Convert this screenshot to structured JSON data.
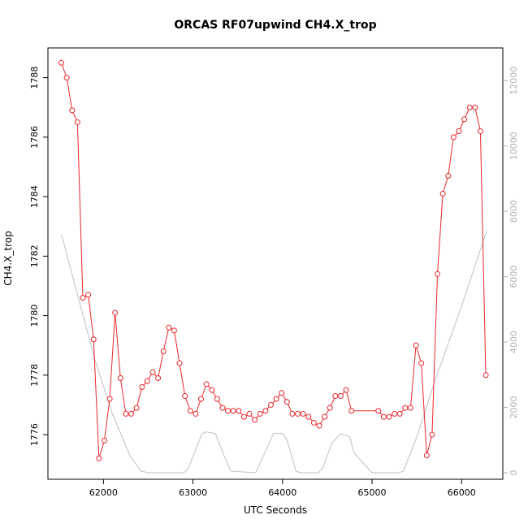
{
  "chart_data": {
    "type": "line",
    "title": "ORCAS RF07upwind CH4.X_trop",
    "xlabel": "UTC Seconds",
    "ylabel": "CH4.X_trop",
    "xlim": [
      61380,
      66460
    ],
    "ylim": [
      1774.5,
      1789.0
    ],
    "y2lim": [
      -200,
      13000
    ],
    "xticks": [
      62000,
      63000,
      64000,
      65000,
      66000
    ],
    "yticks": [
      1776,
      1778,
      1780,
      1782,
      1784,
      1786,
      1788
    ],
    "y2ticks": [
      0,
      2000,
      4000,
      6000,
      8000,
      10000,
      12000
    ],
    "colors": {
      "series": "#e8262b",
      "secondary": "#c0c0c0",
      "axis": "#000000",
      "right_axis": "#b0b0b0"
    },
    "series": [
      {
        "axis": "left",
        "style": "line+points",
        "x": [
          61530,
          61590,
          61650,
          61710,
          61770,
          61830,
          61890,
          61950,
          62010,
          62070,
          62130,
          62190,
          62250,
          62310,
          62370,
          62430,
          62490,
          62550,
          62610,
          62670,
          62730,
          62790,
          62850,
          62910,
          62970,
          63030,
          63090,
          63150,
          63210,
          63270,
          63330,
          63390,
          63450,
          63510,
          63570,
          63630,
          63690,
          63750,
          63810,
          63870,
          63930,
          63990,
          64050,
          64110,
          64170,
          64230,
          64290,
          64350,
          64410,
          64470,
          64530,
          64590,
          64650,
          64710,
          64770,
          65070,
          65130,
          65190,
          65250,
          65310,
          65370,
          65430,
          65490,
          65550,
          65610,
          65670,
          65730,
          65790,
          65850,
          65910,
          65970,
          66030,
          66090,
          66150,
          66210,
          66270
        ],
        "y": [
          1788.5,
          1788.0,
          1786.9,
          1786.5,
          1780.6,
          1780.7,
          1779.2,
          1775.2,
          1775.8,
          1777.2,
          1780.1,
          1777.9,
          1776.7,
          1776.7,
          1776.9,
          1777.6,
          1777.8,
          1778.1,
          1777.9,
          1778.8,
          1779.6,
          1779.5,
          1778.4,
          1777.3,
          1776.8,
          1776.7,
          1777.2,
          1777.7,
          1777.5,
          1777.2,
          1776.9,
          1776.8,
          1776.8,
          1776.8,
          1776.6,
          1776.7,
          1776.5,
          1776.7,
          1776.8,
          1777.0,
          1777.2,
          1777.4,
          1777.1,
          1776.7,
          1776.7,
          1776.7,
          1776.6,
          1776.4,
          1776.3,
          1776.6,
          1776.9,
          1777.3,
          1777.3,
          1777.5,
          1776.8,
          1776.8,
          1776.6,
          1776.6,
          1776.7,
          1776.7,
          1776.9,
          1776.9,
          1779.0,
          1778.4,
          1775.3,
          1776.0,
          1781.4,
          1784.1,
          1784.7,
          1786.0,
          1786.2,
          1786.6,
          1787.0,
          1787.0,
          1786.2,
          1778.0
        ]
      },
      {
        "axis": "right",
        "style": "line",
        "x": [
          61530,
          61900,
          62100,
          62300,
          62420,
          62500,
          62900,
          62950,
          63100,
          63150,
          63250,
          63350,
          63420,
          63700,
          63800,
          63900,
          64000,
          64050,
          64150,
          64200,
          64400,
          64450,
          64550,
          64650,
          64750,
          64800,
          65000,
          65100,
          65300,
          65350,
          65500,
          65700,
          66000,
          66280
        ],
        "y": [
          7300,
          3500,
          1800,
          500,
          50,
          0,
          0,
          150,
          1200,
          1250,
          1200,
          500,
          50,
          0,
          600,
          1200,
          1200,
          1000,
          50,
          0,
          0,
          150,
          900,
          1200,
          1100,
          600,
          0,
          0,
          0,
          50,
          1100,
          2800,
          5100,
          7400
        ]
      }
    ]
  }
}
